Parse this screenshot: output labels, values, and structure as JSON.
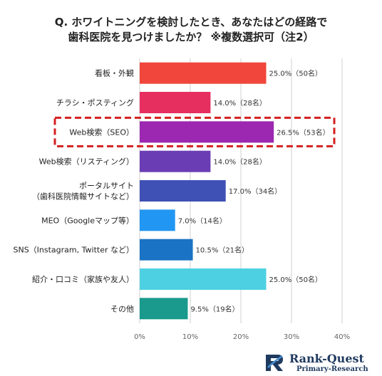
{
  "title": {
    "line1": "Q. ホワイトニングを検討したとき、あなたはどの経路で",
    "line2": "歯科医院を見つけましたか？ ※複数選択可（注2）"
  },
  "chart_data": {
    "type": "bar",
    "orientation": "horizontal",
    "categories": [
      "看板・外観",
      "チラシ・ポスティング",
      "Web検索（SEO）",
      "Web検索（リスティング）",
      "ポータルサイト\n（歯科医院情報サイトなど）",
      "MEO（Googleマップ等）",
      "SNS（Instagram, Twitter など）",
      "紹介・口コミ（家族や友人）",
      "その他"
    ],
    "values": [
      25.0,
      14.0,
      26.5,
      14.0,
      17.0,
      7.0,
      10.5,
      25.0,
      9.5
    ],
    "data_labels": [
      "25.0%（50名）",
      "14.0%（28名）",
      "26.5%（53名）",
      "14.0%（28名）",
      "17.0%（34名）",
      "7.0%（14名）",
      "10.5%（21名）",
      "25.0%（50名）",
      "9.5%（19名）"
    ],
    "colors": [
      "#f0463b",
      "#e62e5f",
      "#9c27b0",
      "#6a3db4",
      "#3f51b5",
      "#2196f3",
      "#1a73c4",
      "#4dd0e1",
      "#1a9a8c"
    ],
    "xlim": [
      0,
      40
    ],
    "x_ticks": [
      "0%",
      "10%",
      "20%",
      "30%",
      "40%"
    ],
    "grid": true,
    "highlight_index": 2,
    "highlight_color": "#d32020"
  },
  "logo": {
    "name": "Rank-Quest",
    "sub": "Primary-Research"
  }
}
